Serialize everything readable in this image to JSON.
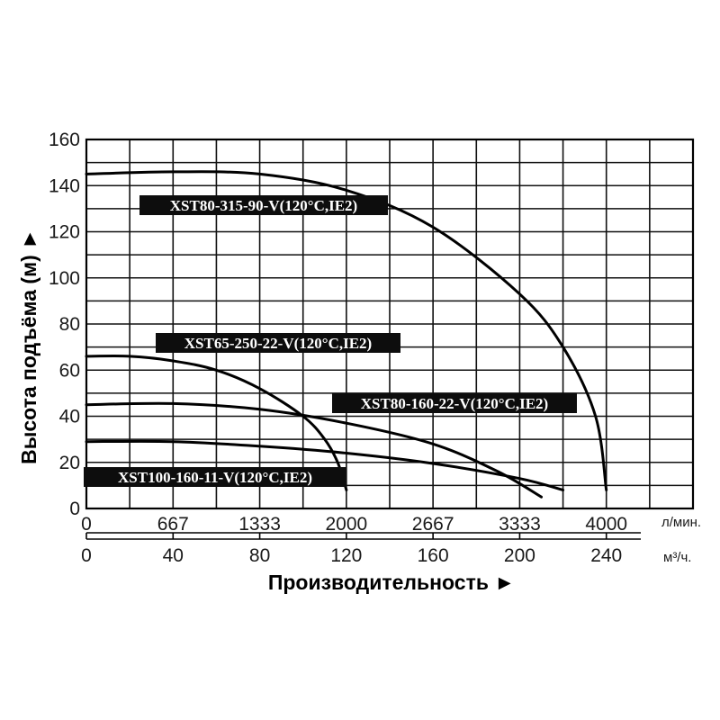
{
  "chart_data": {
    "type": "line",
    "ylabel": "Высота подъёма (м) ►",
    "xlabel": "Производительность ►",
    "ylim": [
      0,
      160
    ],
    "y_ticks": [
      "0",
      "20",
      "40",
      "60",
      "80",
      "100",
      "120",
      "140",
      "160"
    ],
    "x_primary": {
      "unit": "л/мин.",
      "range": [
        0,
        4667
      ],
      "ticks": [
        "0",
        "667",
        "1333",
        "2000",
        "2667",
        "3333",
        "4000"
      ]
    },
    "x_secondary": {
      "unit": "м³/ч.",
      "range": [
        0,
        280
      ],
      "ticks": [
        "0",
        "40",
        "80",
        "120",
        "160",
        "200",
        "240"
      ]
    },
    "grid": true,
    "series": [
      {
        "name": "XST80-315-90-V(120°C,IE2)",
        "x": [
          0,
          40,
          80,
          120,
          160,
          200,
          220,
          235,
          240
        ],
        "y": [
          145,
          146,
          145,
          138,
          122,
          93,
          70,
          40,
          8
        ]
      },
      {
        "name": "XST65-250-22-V(120°C,IE2)",
        "x": [
          0,
          20,
          40,
          60,
          80,
          100,
          110,
          116,
          120
        ],
        "y": [
          66,
          66,
          64,
          60,
          52,
          40,
          30,
          20,
          8
        ]
      },
      {
        "name": "XST80-160-22-V(120°C,IE2)",
        "x": [
          0,
          40,
          80,
          120,
          160,
          190,
          210
        ],
        "y": [
          45,
          45.5,
          43,
          37,
          28,
          16,
          5
        ]
      },
      {
        "name": "XST100-160-11-V(120°C,IE2)",
        "x": [
          0,
          40,
          80,
          120,
          160,
          200,
          220
        ],
        "y": [
          29,
          29,
          27,
          24,
          19.5,
          13,
          8
        ]
      }
    ]
  }
}
